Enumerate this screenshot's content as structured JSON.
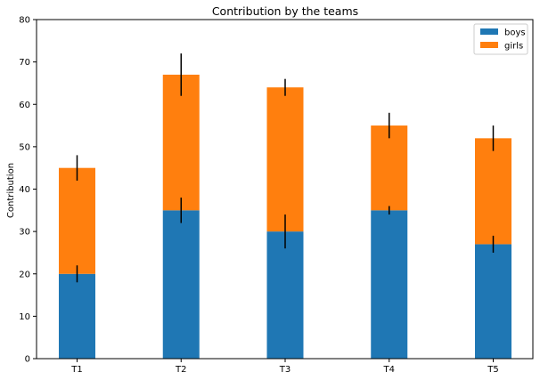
{
  "chart_data": {
    "type": "bar",
    "stacked": true,
    "title": "Contribution by the teams",
    "xlabel": "",
    "ylabel": "Contribution",
    "ylim": [
      0,
      80
    ],
    "yticks": [
      0,
      10,
      20,
      30,
      40,
      50,
      60,
      70,
      80
    ],
    "categories": [
      "T1",
      "T2",
      "T3",
      "T4",
      "T5"
    ],
    "series": [
      {
        "name": "boys",
        "color": "#1f77b4",
        "values": [
          20,
          35,
          30,
          35,
          27
        ],
        "errors": [
          2,
          3,
          4,
          1,
          2
        ]
      },
      {
        "name": "girls",
        "color": "#ff7f0e",
        "values": [
          25,
          32,
          34,
          20,
          25
        ],
        "errors": [
          3,
          5,
          2,
          3,
          3
        ]
      }
    ],
    "grid": false,
    "legend_position": "top-right"
  }
}
